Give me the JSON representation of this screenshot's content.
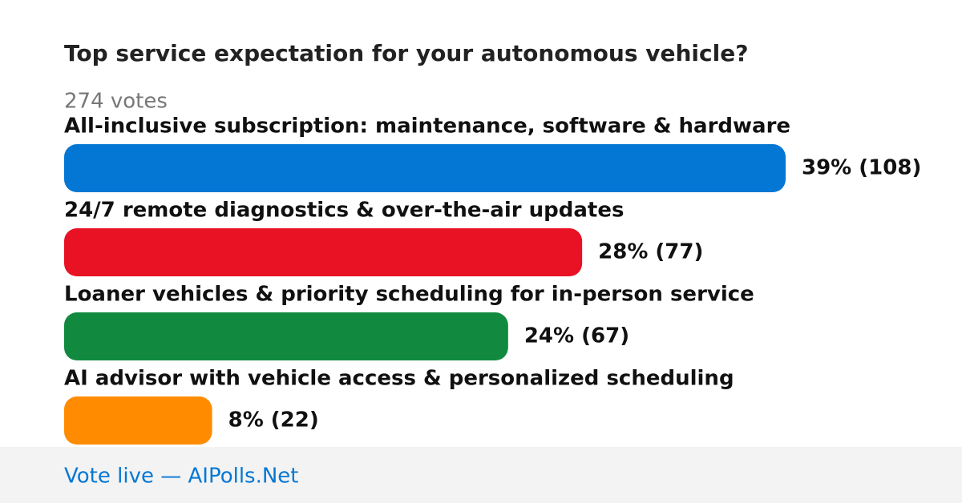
{
  "chart_data": {
    "type": "bar",
    "orientation": "horizontal",
    "title": "Top service expectation for your autonomous vehicle?",
    "subtitle": "274 votes",
    "categories": [
      "All-inclusive subscription: maintenance, software & hardware",
      "24/7 remote diagnostics & over-the-air updates",
      "Loaner vehicles & priority scheduling for in-person service",
      "AI advisor with vehicle access & personalized scheduling"
    ],
    "values": [
      39,
      28,
      24,
      8
    ],
    "value_labels": [
      "39% (108)",
      "28% (77)",
      "24% (67)",
      "8% (22)"
    ],
    "colors": [
      "#0477d4",
      "#e81224",
      "#118a3f",
      "#ff8c00"
    ]
  },
  "footer": "Vote live — AIPolls.Net"
}
